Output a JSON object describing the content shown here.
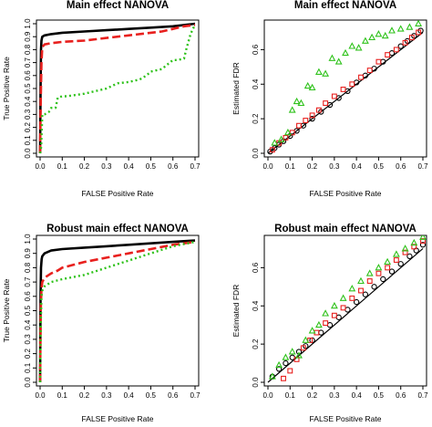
{
  "colors": {
    "black": "#000000",
    "red": "#e8201e",
    "green": "#2ec21a"
  },
  "chart_data": [
    {
      "type": "line",
      "title": "Main effect NANOVA",
      "xlabel": "FALSE Positive Rate",
      "ylabel": "True Positive Rate",
      "xlim": [
        0,
        0.7
      ],
      "ylim": [
        0,
        1
      ],
      "xticks": [
        "0.0",
        "0.1",
        "0.2",
        "0.3",
        "0.4",
        "0.5",
        "0.6",
        "0.7"
      ],
      "yticks": [
        "0.0",
        "0.1",
        "0.2",
        "0.3",
        "0.4",
        "0.5",
        "0.6",
        "0.7",
        "0.8",
        "0.9",
        "1.0"
      ],
      "grid": false,
      "series": [
        {
          "color": "black",
          "style": "solid",
          "x": [
            0,
            0.002,
            0.004,
            0.006,
            0.01,
            0.02,
            0.05,
            0.1,
            0.2,
            0.3,
            0.4,
            0.5,
            0.6,
            0.65,
            0.7
          ],
          "y": [
            0,
            0.5,
            0.8,
            0.87,
            0.9,
            0.91,
            0.92,
            0.93,
            0.94,
            0.95,
            0.96,
            0.97,
            0.98,
            0.99,
            1.0
          ]
        },
        {
          "color": "red",
          "style": "dashed",
          "x": [
            0,
            0.003,
            0.006,
            0.01,
            0.02,
            0.05,
            0.1,
            0.15,
            0.2,
            0.3,
            0.4,
            0.5,
            0.55,
            0.6,
            0.65,
            0.7
          ],
          "y": [
            0,
            0.4,
            0.7,
            0.82,
            0.84,
            0.85,
            0.86,
            0.865,
            0.87,
            0.89,
            0.91,
            0.93,
            0.94,
            0.96,
            0.98,
            0.99
          ]
        },
        {
          "color": "green",
          "style": "dotted",
          "x": [
            0,
            0.005,
            0.01,
            0.02,
            0.04,
            0.05,
            0.07,
            0.08,
            0.1,
            0.12,
            0.2,
            0.3,
            0.35,
            0.4,
            0.45,
            0.48,
            0.5,
            0.55,
            0.6,
            0.62,
            0.65,
            0.66,
            0.68,
            0.69,
            0.7
          ],
          "y": [
            0,
            0.05,
            0.3,
            0.3,
            0.32,
            0.35,
            0.35,
            0.43,
            0.44,
            0.44,
            0.46,
            0.5,
            0.54,
            0.55,
            0.57,
            0.6,
            0.63,
            0.65,
            0.72,
            0.72,
            0.73,
            0.8,
            0.92,
            0.96,
            0.99
          ]
        }
      ]
    },
    {
      "type": "scatter",
      "title": "Main effect NANOVA",
      "xlabel": "FALSE Positive Rate",
      "ylabel": "Estimated FDR",
      "xlim": [
        0,
        0.7
      ],
      "ylim": [
        0,
        0.75
      ],
      "xticks": [
        "0.0",
        "0.1",
        "0.2",
        "0.3",
        "0.4",
        "0.5",
        "0.6",
        "0.7"
      ],
      "yticks": [
        "0.0",
        "0.2",
        "0.4",
        "0.6"
      ],
      "grid": false,
      "reference_line": {
        "from": [
          0,
          0
        ],
        "to": [
          0.7,
          0.7
        ]
      },
      "series": [
        {
          "color": "black",
          "marker": "circle",
          "x": [
            0.01,
            0.03,
            0.05,
            0.07,
            0.1,
            0.13,
            0.16,
            0.2,
            0.24,
            0.28,
            0.32,
            0.36,
            0.4,
            0.44,
            0.48,
            0.52,
            0.56,
            0.6,
            0.63,
            0.66,
            0.69
          ],
          "y": [
            0.01,
            0.03,
            0.05,
            0.07,
            0.1,
            0.13,
            0.16,
            0.2,
            0.24,
            0.28,
            0.32,
            0.36,
            0.41,
            0.45,
            0.49,
            0.53,
            0.58,
            0.62,
            0.65,
            0.68,
            0.71
          ]
        },
        {
          "color": "red",
          "marker": "square",
          "x": [
            0.02,
            0.05,
            0.08,
            0.11,
            0.14,
            0.17,
            0.2,
            0.23,
            0.26,
            0.3,
            0.34,
            0.38,
            0.42,
            0.46,
            0.5,
            0.54,
            0.58,
            0.62,
            0.65,
            0.68
          ],
          "y": [
            0.02,
            0.06,
            0.09,
            0.12,
            0.16,
            0.19,
            0.22,
            0.25,
            0.29,
            0.33,
            0.37,
            0.4,
            0.44,
            0.48,
            0.53,
            0.57,
            0.6,
            0.64,
            0.67,
            0.7
          ]
        },
        {
          "color": "green",
          "marker": "triangle",
          "x": [
            0.03,
            0.06,
            0.09,
            0.11,
            0.13,
            0.15,
            0.18,
            0.2,
            0.23,
            0.26,
            0.29,
            0.32,
            0.35,
            0.38,
            0.41,
            0.44,
            0.47,
            0.5,
            0.53,
            0.56,
            0.6,
            0.64,
            0.68
          ],
          "y": [
            0.06,
            0.08,
            0.12,
            0.25,
            0.3,
            0.29,
            0.39,
            0.38,
            0.47,
            0.46,
            0.55,
            0.53,
            0.58,
            0.62,
            0.61,
            0.65,
            0.67,
            0.69,
            0.68,
            0.71,
            0.72,
            0.73,
            0.75
          ]
        }
      ]
    },
    {
      "type": "line",
      "title": "Robust main effect NANOVA",
      "xlabel": "FALSE Positive Rate",
      "ylabel": "True Positive Rate",
      "xlim": [
        0,
        0.7
      ],
      "ylim": [
        0,
        1
      ],
      "xticks": [
        "0.0",
        "0.1",
        "0.2",
        "0.3",
        "0.4",
        "0.5",
        "0.6",
        "0.7"
      ],
      "yticks": [
        "0.0",
        "0.1",
        "0.2",
        "0.3",
        "0.4",
        "0.5",
        "0.6",
        "0.7",
        "0.8",
        "0.9",
        "1.0"
      ],
      "grid": false,
      "series": [
        {
          "color": "black",
          "style": "solid",
          "x": [
            0,
            0.002,
            0.004,
            0.007,
            0.01,
            0.02,
            0.05,
            0.1,
            0.2,
            0.3,
            0.4,
            0.5,
            0.6,
            0.7
          ],
          "y": [
            0,
            0.6,
            0.8,
            0.86,
            0.88,
            0.9,
            0.92,
            0.93,
            0.94,
            0.95,
            0.96,
            0.97,
            0.98,
            0.99
          ]
        },
        {
          "color": "red",
          "style": "dashed",
          "x": [
            0,
            0.003,
            0.006,
            0.01,
            0.02,
            0.05,
            0.08,
            0.1,
            0.15,
            0.2,
            0.3,
            0.4,
            0.5,
            0.6,
            0.7
          ],
          "y": [
            0,
            0.5,
            0.65,
            0.7,
            0.73,
            0.76,
            0.78,
            0.8,
            0.82,
            0.84,
            0.87,
            0.9,
            0.93,
            0.96,
            0.98
          ]
        },
        {
          "color": "green",
          "style": "dotted",
          "x": [
            0,
            0.003,
            0.006,
            0.01,
            0.02,
            0.05,
            0.1,
            0.2,
            0.3,
            0.4,
            0.5,
            0.6,
            0.7
          ],
          "y": [
            0,
            0.4,
            0.6,
            0.64,
            0.67,
            0.7,
            0.72,
            0.75,
            0.8,
            0.85,
            0.9,
            0.95,
            0.98
          ]
        }
      ]
    },
    {
      "type": "scatter",
      "title": "Robust main effect NANOVA",
      "xlabel": "FALSE Positive Rate",
      "ylabel": "Estimated FDR",
      "xlim": [
        0,
        0.7
      ],
      "ylim": [
        0,
        0.75
      ],
      "xticks": [
        "0.0",
        "0.1",
        "0.2",
        "0.3",
        "0.4",
        "0.5",
        "0.6",
        "0.7"
      ],
      "yticks": [
        "0.0",
        "0.2",
        "0.4",
        "0.6"
      ],
      "grid": false,
      "reference_line": {
        "from": [
          0,
          0
        ],
        "to": [
          0.7,
          0.7
        ]
      },
      "series": [
        {
          "color": "black",
          "marker": "circle",
          "x": [
            0.02,
            0.05,
            0.08,
            0.11,
            0.14,
            0.17,
            0.2,
            0.24,
            0.28,
            0.32,
            0.36,
            0.4,
            0.44,
            0.48,
            0.52,
            0.56,
            0.6,
            0.64,
            0.67,
            0.7
          ],
          "y": [
            0.03,
            0.07,
            0.1,
            0.13,
            0.16,
            0.19,
            0.22,
            0.26,
            0.3,
            0.34,
            0.38,
            0.42,
            0.46,
            0.5,
            0.54,
            0.58,
            0.62,
            0.66,
            0.69,
            0.72
          ]
        },
        {
          "color": "red",
          "marker": "square",
          "x": [
            0.07,
            0.1,
            0.13,
            0.16,
            0.19,
            0.22,
            0.26,
            0.3,
            0.34,
            0.38,
            0.42,
            0.46,
            0.5,
            0.54,
            0.58,
            0.62,
            0.66,
            0.7
          ],
          "y": [
            0.02,
            0.06,
            0.12,
            0.18,
            0.22,
            0.26,
            0.31,
            0.35,
            0.39,
            0.44,
            0.48,
            0.53,
            0.57,
            0.6,
            0.64,
            0.68,
            0.71,
            0.74
          ]
        },
        {
          "color": "green",
          "marker": "triangle",
          "x": [
            0.02,
            0.05,
            0.08,
            0.11,
            0.14,
            0.17,
            0.2,
            0.23,
            0.26,
            0.3,
            0.34,
            0.38,
            0.42,
            0.46,
            0.5,
            0.54,
            0.58,
            0.62,
            0.66,
            0.7
          ],
          "y": [
            0.03,
            0.09,
            0.13,
            0.16,
            0.14,
            0.22,
            0.27,
            0.3,
            0.36,
            0.4,
            0.44,
            0.49,
            0.53,
            0.57,
            0.6,
            0.63,
            0.67,
            0.7,
            0.73,
            0.76
          ]
        }
      ]
    }
  ]
}
